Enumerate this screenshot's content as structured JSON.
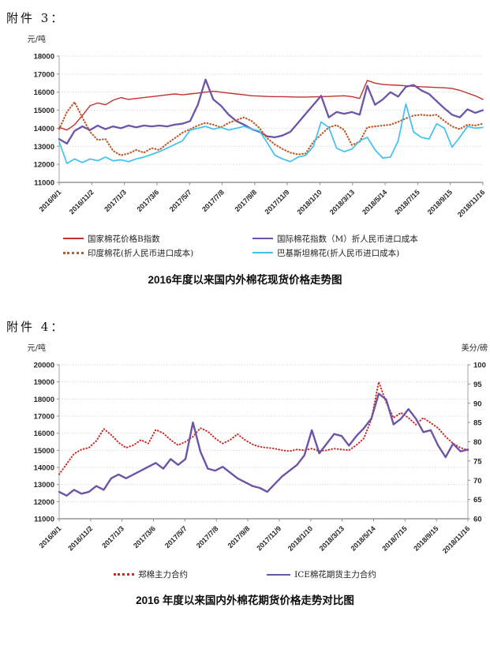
{
  "page": {
    "attachment3_label": "附件 3：",
    "attachment4_label": "附件 4："
  },
  "chart_data": [
    {
      "type": "line",
      "title": "2016年度以来国内外棉花现货价格走势图",
      "unit_left": "元/吨",
      "ylim_left": [
        11000,
        18000
      ],
      "yticks_left": [
        11000,
        12000,
        13000,
        14000,
        15000,
        16000,
        17000,
        18000
      ],
      "grid": "horizontal-dotted",
      "legend_position": "bottom",
      "x_labels": [
        "2016/9/1",
        "2016/11/2",
        "2017/1/3",
        "2017/3/6",
        "2017/5/7",
        "2017/7/8",
        "2017/9/8",
        "2017/11/9",
        "2018/1/10",
        "2018/3/13",
        "2018/5/14",
        "2018/7/15",
        "2018/9/15",
        "2018/11/16"
      ],
      "series": [
        {
          "name": "国家棉花价格B指数",
          "color": "#c2312c",
          "style": "solid",
          "axis": "left",
          "width": 1.4,
          "values": [
            14050,
            13900,
            14200,
            14700,
            15250,
            15400,
            15300,
            15550,
            15700,
            15600,
            15650,
            15700,
            15750,
            15800,
            15850,
            15900,
            15850,
            15900,
            15950,
            16000,
            16050,
            16000,
            15950,
            15900,
            15850,
            15800,
            15780,
            15760,
            15750,
            15750,
            15740,
            15730,
            15730,
            15740,
            15750,
            15760,
            15780,
            15800,
            15750,
            15650,
            16650,
            16500,
            16430,
            16400,
            16380,
            16350,
            16330,
            16300,
            16280,
            16260,
            16240,
            16200,
            16100,
            15950,
            15800,
            15600
          ]
        },
        {
          "name": "国际棉花指数（M）折人民币进口成本",
          "color": "#6c55a8",
          "style": "solid",
          "axis": "left",
          "width": 2.3,
          "values": [
            13400,
            13150,
            13850,
            14100,
            13900,
            14150,
            13950,
            14100,
            14000,
            14150,
            14050,
            14150,
            14100,
            14150,
            14100,
            14200,
            14250,
            14400,
            15300,
            16700,
            15600,
            15250,
            14750,
            14400,
            14200,
            13950,
            13800,
            13550,
            13500,
            13600,
            13800,
            14300,
            14800,
            15300,
            15800,
            14600,
            14900,
            14800,
            14900,
            14750,
            16350,
            15300,
            15600,
            16000,
            15750,
            16300,
            16400,
            16100,
            15900,
            15500,
            15100,
            14750,
            14600,
            15050,
            14850,
            15000
          ]
        },
        {
          "name": "印度棉花(折人民币进口成本)",
          "color": "#c05a28",
          "style": "dotted",
          "axis": "left",
          "width": 2.2,
          "values": [
            13950,
            14900,
            15450,
            14600,
            13800,
            13350,
            13400,
            12750,
            12500,
            12600,
            12800,
            12650,
            12900,
            12800,
            13150,
            13450,
            13750,
            13950,
            14150,
            14300,
            14200,
            14050,
            14300,
            14450,
            14600,
            14400,
            14000,
            13450,
            13100,
            12850,
            12650,
            12550,
            12600,
            13250,
            13650,
            14050,
            14170,
            13900,
            13070,
            13250,
            14050,
            14100,
            14150,
            14200,
            14350,
            14550,
            14700,
            14750,
            14700,
            14750,
            14400,
            14100,
            13950,
            14200,
            14150,
            14250
          ]
        },
        {
          "name": "巴基斯坦棉花(折人民币进口成本)",
          "color": "#3fc1f0",
          "style": "solid",
          "axis": "left",
          "width": 1.7,
          "values": [
            13250,
            12050,
            12300,
            12100,
            12300,
            12200,
            12400,
            12200,
            12250,
            12150,
            12300,
            12400,
            12550,
            12700,
            12900,
            13100,
            13300,
            13900,
            14000,
            14100,
            13950,
            14050,
            13900,
            14000,
            14100,
            13950,
            13850,
            13200,
            12500,
            12300,
            12150,
            12400,
            12500,
            13000,
            14350,
            14050,
            12900,
            12700,
            12850,
            13300,
            13500,
            12800,
            12350,
            12400,
            13300,
            15350,
            13800,
            13500,
            13400,
            14250,
            14000,
            12950,
            13500,
            14100,
            14000,
            14050
          ]
        }
      ]
    },
    {
      "type": "line",
      "title": "2016 年度以来国内外棉花期货价格走势对比图",
      "unit_left": "元/吨",
      "unit_right": "美分/磅",
      "ylim_left": [
        11000,
        20000
      ],
      "yticks_left": [
        11000,
        12000,
        13000,
        14000,
        15000,
        16000,
        17000,
        18000,
        19000,
        20000
      ],
      "ylim_right": [
        60,
        100
      ],
      "yticks_right": [
        60,
        65,
        70,
        75,
        80,
        85,
        90,
        95,
        100
      ],
      "grid": "horizontal-dotted",
      "legend_position": "bottom",
      "x_labels": [
        "2016/9/1",
        "2016/11/2",
        "2017/1/3",
        "2017/3/6",
        "2017/5/7",
        "2017/7/8",
        "2017/9/8",
        "2017/11/9",
        "2018/1/10",
        "2018/3/13",
        "2018/5/14",
        "2018/7/15",
        "2018/9/15",
        "2018/11/16"
      ],
      "series": [
        {
          "name": "郑棉主力合约",
          "color": "#d02620",
          "style": "dotted",
          "axis": "left",
          "width": 2.0,
          "values": [
            13600,
            14200,
            14800,
            15050,
            15150,
            15550,
            16250,
            15900,
            15450,
            15150,
            15300,
            15600,
            15400,
            16200,
            16000,
            15600,
            15300,
            15500,
            15800,
            16300,
            16100,
            15700,
            15400,
            15600,
            15950,
            15600,
            15350,
            15200,
            15150,
            15100,
            15000,
            14950,
            15050,
            15000,
            15100,
            14950,
            15000,
            15100,
            15050,
            15000,
            15300,
            15700,
            16800,
            19000,
            17800,
            16900,
            17200,
            16900,
            16500,
            16900,
            16600,
            16300,
            15800,
            15400,
            15150,
            15000
          ]
        },
        {
          "name": "ICE棉花期货主力合约",
          "color": "#6c55a8",
          "style": "solid",
          "axis": "right",
          "width": 2.4,
          "values": [
            67.0,
            66.0,
            67.5,
            66.5,
            67.0,
            68.5,
            67.5,
            70.5,
            71.5,
            70.5,
            71.5,
            72.5,
            73.5,
            74.5,
            73.0,
            75.5,
            74.0,
            75.5,
            85.0,
            77.5,
            73.0,
            72.5,
            73.5,
            72.0,
            70.5,
            69.5,
            68.5,
            68.0,
            67.0,
            69.0,
            71.0,
            72.5,
            74.0,
            76.5,
            83.0,
            77.0,
            79.5,
            82.0,
            81.5,
            79.0,
            81.5,
            83.5,
            86.0,
            92.5,
            91.0,
            84.5,
            86.0,
            88.5,
            86.0,
            82.5,
            83.0,
            79.0,
            76.0,
            79.5,
            77.5,
            78.0
          ]
        }
      ]
    }
  ]
}
